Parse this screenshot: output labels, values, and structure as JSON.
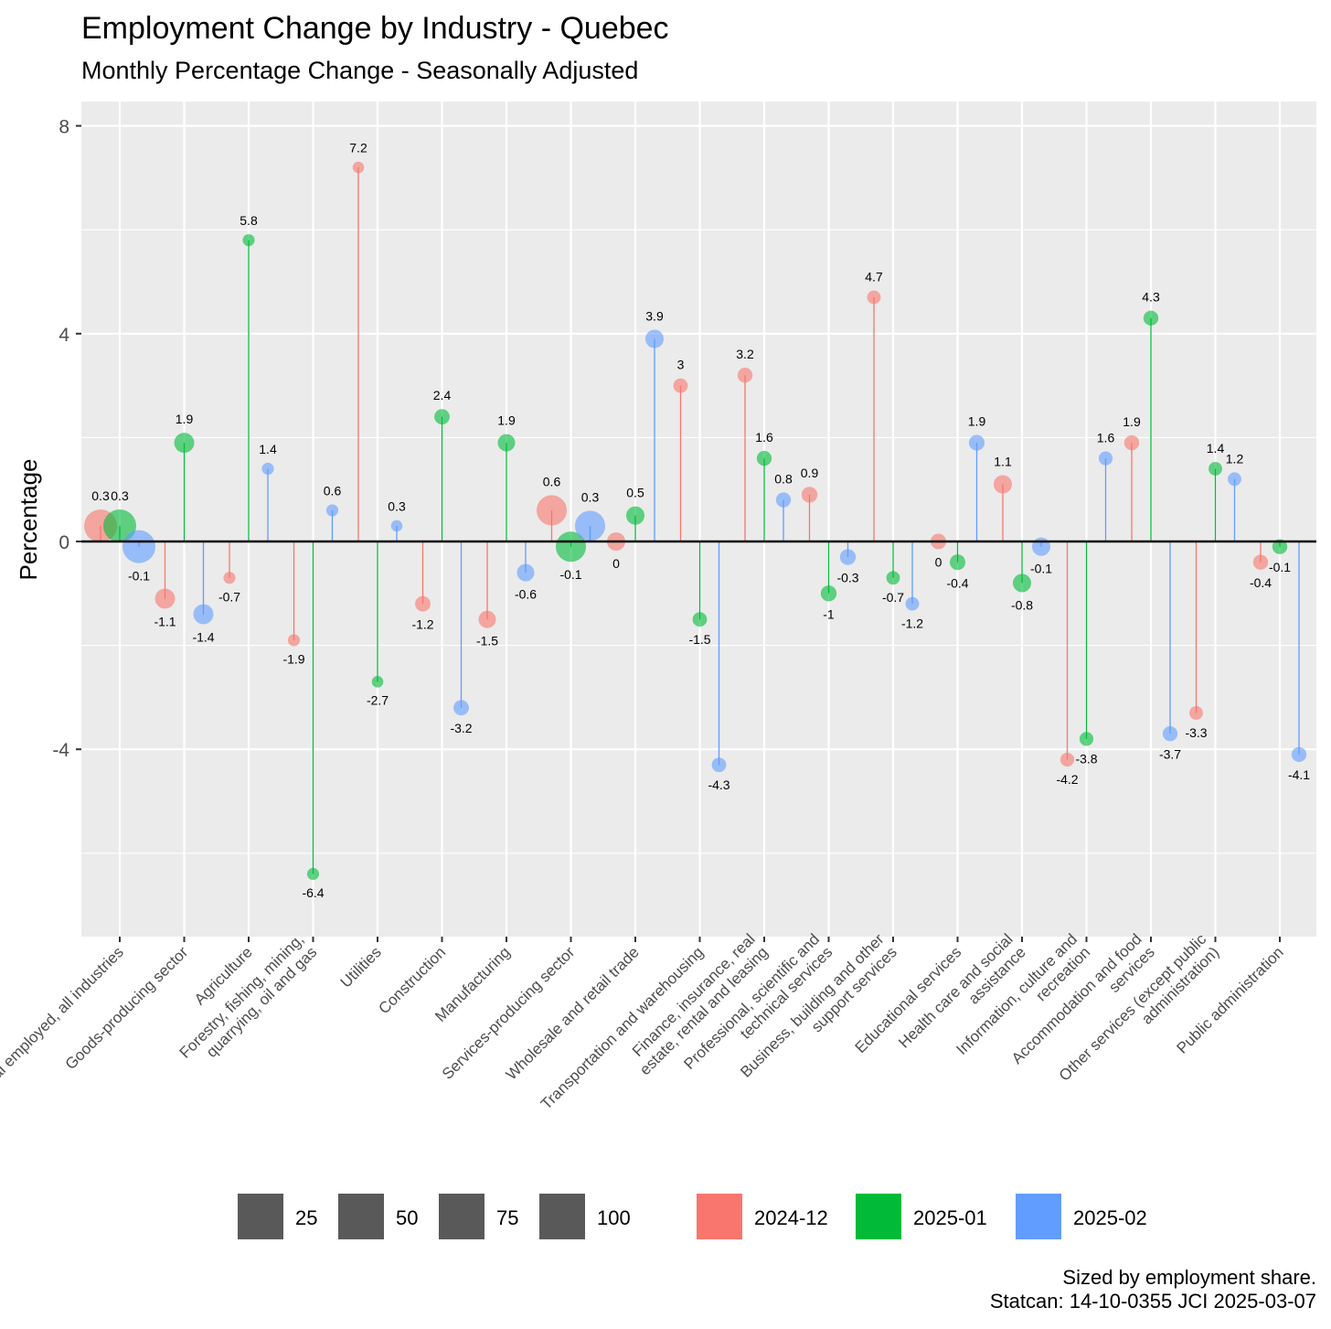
{
  "title": "Employment Change by Industry - Quebec",
  "subtitle": "Monthly Percentage Change  - Seasonally Adjusted",
  "caption": [
    "Sized by employment share.",
    "Statcan: 14-10-0355 JCI 2025-03-07"
  ],
  "chart_data": {
    "type": "lollipop",
    "ylabel": "Percentage",
    "xlabel": "",
    "yticks": [
      -4,
      0,
      4,
      8
    ],
    "ylim": [
      -7.6,
      8.5
    ],
    "grid": true,
    "legend_position": "bottom",
    "categories": [
      "Total employed, all industries",
      "Goods-producing sector",
      "Agriculture",
      "Forestry, fishing, mining, quarrying, oil and gas",
      "Utilities",
      "Construction",
      "Manufacturing",
      "Services-producing sector",
      "Wholesale and retail trade",
      "Transportation and warehousing",
      "Finance, insurance, real estate, rental and leasing",
      "Professional, scientific and technical services",
      "Business, building and other support services",
      "Educational services",
      "Health care and social assistance",
      "Information, culture and recreation",
      "Accommodation and food services",
      "Other services (except public administration)",
      "Public administration"
    ],
    "category_label_lines": [
      [
        "Total employed, all industries"
      ],
      [
        "Goods-producing sector"
      ],
      [
        "Agriculture"
      ],
      [
        "Forestry, fishing, mining,",
        "quarrying, oil and gas"
      ],
      [
        "Utilities"
      ],
      [
        "Construction"
      ],
      [
        "Manufacturing"
      ],
      [
        "Services-producing sector"
      ],
      [
        "Wholesale and retail trade"
      ],
      [
        "Transportation and warehousing"
      ],
      [
        "Finance, insurance, real",
        "estate, rental and leasing"
      ],
      [
        "Professional, scientific and",
        "technical services"
      ],
      [
        "Business, building and other",
        "support services"
      ],
      [
        "Educational services"
      ],
      [
        "Health care and social",
        "assistance"
      ],
      [
        "Information, culture and",
        "recreation"
      ],
      [
        "Accommodation and food",
        "services"
      ],
      [
        "Other services (except public",
        "administration)"
      ],
      [
        "Public administration"
      ]
    ],
    "series": [
      {
        "name": "2024-12",
        "color": "#F8766D",
        "values": [
          0.3,
          -1.1,
          -0.7,
          -1.9,
          7.2,
          -1.2,
          -1.5,
          0.6,
          0,
          3,
          3.2,
          0.9,
          4.7,
          0,
          1.1,
          -4.2,
          1.9,
          -3.3,
          -0.4
        ]
      },
      {
        "name": "2025-01",
        "color": "#00BA38",
        "values": [
          0.3,
          1.9,
          5.8,
          -6.4,
          -2.7,
          2.4,
          1.9,
          -0.1,
          0.5,
          -1.5,
          1.6,
          -1,
          -0.7,
          -0.4,
          -0.8,
          -3.8,
          4.3,
          1.4,
          -0.1
        ]
      },
      {
        "name": "2025-02",
        "color": "#619CFF",
        "values": [
          -0.1,
          -1.4,
          1.4,
          0.6,
          0.3,
          -3.2,
          -0.6,
          0.3,
          3.9,
          -4.3,
          0.8,
          -0.3,
          -1.2,
          1.9,
          -0.1,
          1.6,
          -3.7,
          1.2,
          -4.1
        ]
      }
    ],
    "employment_share": [
      100,
      21,
      1.5,
      1.5,
      1,
      7,
      12,
      79,
      15,
      5,
      6,
      8,
      3.5,
      7.5,
      15,
      4,
      6,
      3.5,
      6
    ],
    "size_legend": {
      "title": "",
      "values": [
        25,
        50,
        75,
        100
      ]
    }
  }
}
